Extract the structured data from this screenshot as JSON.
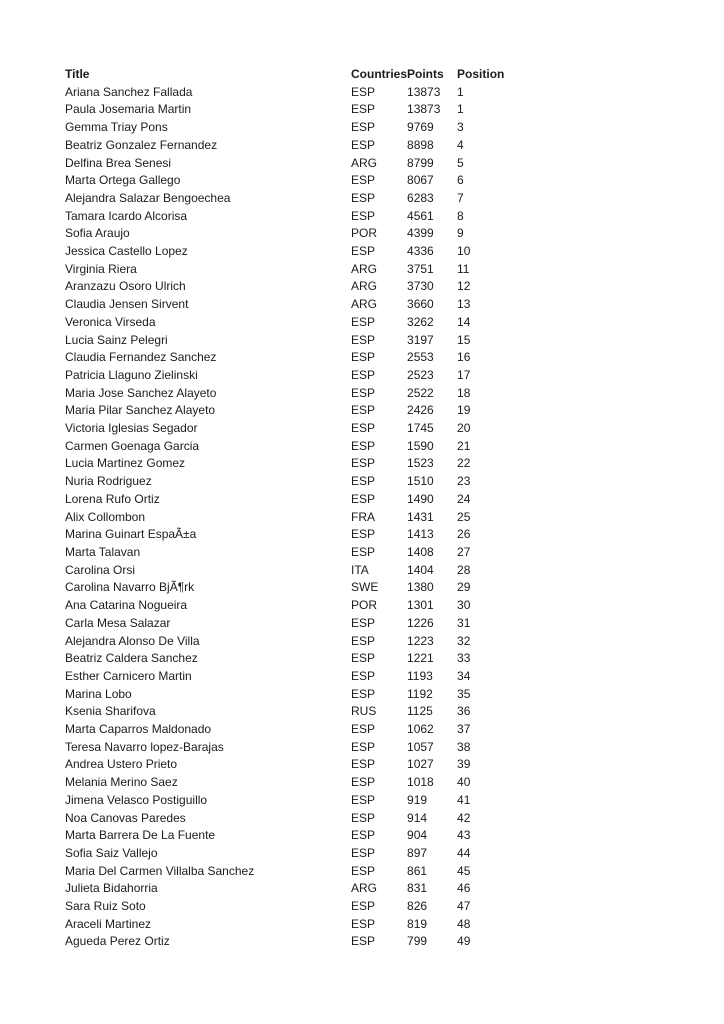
{
  "table": {
    "columns": [
      "Title",
      "Countries",
      "Points",
      "Position"
    ],
    "rows": [
      {
        "title": "Ariana Sanchez Fallada",
        "country": "ESP",
        "points": "13873",
        "position": "1"
      },
      {
        "title": "Paula Josemaria Martin",
        "country": "ESP",
        "points": "13873",
        "position": "1"
      },
      {
        "title": "Gemma Triay Pons",
        "country": "ESP",
        "points": "9769",
        "position": "3"
      },
      {
        "title": "Beatriz Gonzalez Fernandez",
        "country": "ESP",
        "points": "8898",
        "position": "4"
      },
      {
        "title": "Delfina Brea Senesi",
        "country": "ARG",
        "points": "8799",
        "position": "5"
      },
      {
        "title": "Marta Ortega Gallego",
        "country": "ESP",
        "points": "8067",
        "position": "6"
      },
      {
        "title": "Alejandra Salazar Bengoechea",
        "country": "ESP",
        "points": "6283",
        "position": "7"
      },
      {
        "title": "Tamara Icardo Alcorisa",
        "country": "ESP",
        "points": "4561",
        "position": "8"
      },
      {
        "title": "Sofia Araujo",
        "country": "POR",
        "points": "4399",
        "position": "9"
      },
      {
        "title": "Jessica Castello Lopez",
        "country": "ESP",
        "points": "4336",
        "position": "10"
      },
      {
        "title": "Virginia Riera",
        "country": "ARG",
        "points": "3751",
        "position": "11"
      },
      {
        "title": "Aranzazu Osoro Ulrich",
        "country": "ARG",
        "points": "3730",
        "position": "12"
      },
      {
        "title": "Claudia Jensen Sirvent",
        "country": "ARG",
        "points": "3660",
        "position": "13"
      },
      {
        "title": "Veronica Virseda",
        "country": "ESP",
        "points": "3262",
        "position": "14"
      },
      {
        "title": "Lucia Sainz Pelegri",
        "country": "ESP",
        "points": "3197",
        "position": "15"
      },
      {
        "title": "Claudia Fernandez Sanchez",
        "country": "ESP",
        "points": "2553",
        "position": "16"
      },
      {
        "title": "Patricia Llaguno Zielinski",
        "country": "ESP",
        "points": "2523",
        "position": "17"
      },
      {
        "title": "Maria Jose Sanchez Alayeto",
        "country": "ESP",
        "points": "2522",
        "position": "18"
      },
      {
        "title": "Maria Pilar Sanchez Alayeto",
        "country": "ESP",
        "points": "2426",
        "position": "19"
      },
      {
        "title": "Victoria Iglesias Segador",
        "country": "ESP",
        "points": "1745",
        "position": "20"
      },
      {
        "title": "Carmen Goenaga Garcia",
        "country": "ESP",
        "points": "1590",
        "position": "21"
      },
      {
        "title": "Lucia Martinez Gomez",
        "country": "ESP",
        "points": "1523",
        "position": "22"
      },
      {
        "title": "Nuria Rodriguez",
        "country": "ESP",
        "points": "1510",
        "position": "23"
      },
      {
        "title": "Lorena Rufo Ortiz",
        "country": "ESP",
        "points": "1490",
        "position": "24"
      },
      {
        "title": "Alix Collombon",
        "country": "FRA",
        "points": "1431",
        "position": "25"
      },
      {
        "title": "Marina Guinart EspaÃ±a",
        "country": "ESP",
        "points": "1413",
        "position": "26"
      },
      {
        "title": "Marta Talavan",
        "country": "ESP",
        "points": "1408",
        "position": "27"
      },
      {
        "title": "Carolina Orsi",
        "country": "ITA",
        "points": "1404",
        "position": "28"
      },
      {
        "title": "Carolina Navarro BjÃ¶rk",
        "country": "SWE",
        "points": "1380",
        "position": "29"
      },
      {
        "title": "Ana Catarina Nogueira",
        "country": "POR",
        "points": "1301",
        "position": "30"
      },
      {
        "title": "Carla Mesa Salazar",
        "country": "ESP",
        "points": "1226",
        "position": "31"
      },
      {
        "title": "Alejandra Alonso De Villa",
        "country": "ESP",
        "points": "1223",
        "position": "32"
      },
      {
        "title": "Beatriz Caldera Sanchez",
        "country": "ESP",
        "points": "1221",
        "position": "33"
      },
      {
        "title": "Esther Carnicero Martin",
        "country": "ESP",
        "points": "1193",
        "position": "34"
      },
      {
        "title": "Marina Lobo",
        "country": "ESP",
        "points": "1192",
        "position": "35"
      },
      {
        "title": "Ksenia Sharifova",
        "country": "RUS",
        "points": "1125",
        "position": "36"
      },
      {
        "title": "Marta Caparros Maldonado",
        "country": "ESP",
        "points": "1062",
        "position": "37"
      },
      {
        "title": "Teresa Navarro lopez-Barajas",
        "country": "ESP",
        "points": "1057",
        "position": "38"
      },
      {
        "title": "Andrea Ustero Prieto",
        "country": "ESP",
        "points": "1027",
        "position": "39"
      },
      {
        "title": "Melania Merino Saez",
        "country": "ESP",
        "points": "1018",
        "position": "40"
      },
      {
        "title": "Jimena Velasco Postiguillo",
        "country": "ESP",
        "points": "919",
        "position": "41"
      },
      {
        "title": "Noa Canovas Paredes",
        "country": "ESP",
        "points": "914",
        "position": "42"
      },
      {
        "title": "Marta Barrera De La Fuente",
        "country": "ESP",
        "points": "904",
        "position": "43"
      },
      {
        "title": "Sofia Saiz Vallejo",
        "country": "ESP",
        "points": "897",
        "position": "44"
      },
      {
        "title": "Maria Del Carmen Villalba Sanchez",
        "country": "ESP",
        "points": "861",
        "position": "45"
      },
      {
        "title": "Julieta Bidahorria",
        "country": "ARG",
        "points": "831",
        "position": "46"
      },
      {
        "title": "Sara Ruiz Soto",
        "country": "ESP",
        "points": "826",
        "position": "47"
      },
      {
        "title": "Araceli Martinez",
        "country": "ESP",
        "points": "819",
        "position": "48"
      },
      {
        "title": "Agueda Perez Ortiz",
        "country": "ESP",
        "points": "799",
        "position": "49"
      }
    ]
  },
  "colors": {
    "page_background": "#ffffff",
    "text": "#1c1c1c"
  }
}
